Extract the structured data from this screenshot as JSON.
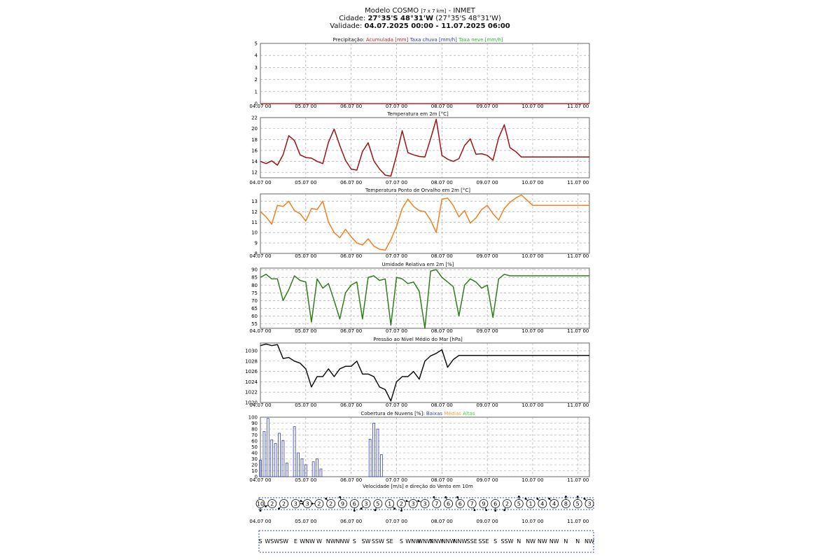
{
  "header": {
    "model": "Modelo COSMO",
    "res": "[7 x 7 km]",
    "org": "- INMET",
    "city_label": "Cidade:",
    "city_coords": "27°35'S 48°31'W",
    "city_coords2": "(27°35'S 48°31'W)",
    "valid_label": "Validade:",
    "valid_range": "04.07.2025 00:00 - 11.07.2025 06:00"
  },
  "colors": {
    "temp": "#a01010",
    "dew": "#f08020",
    "rh": "#2e7d1a",
    "press": "#111111",
    "cloud_low": "#3040c0",
    "cloud_mid": "#f0a030",
    "cloud_high": "#40d040",
    "precip_acc": "#cc2020",
    "precip_rain": "#2040d0",
    "precip_snow": "#20c020",
    "wind_box": "#2a4fd6"
  },
  "x_ticks": [
    "04.07 00",
    "05.07 00",
    "06.07 00",
    "07.07 00",
    "08.07 00",
    "09.07 00",
    "10.07 00",
    "11.07 00"
  ],
  "chart_data": [
    {
      "type": "line",
      "id": "precip",
      "title_parts": {
        "pre": "Precipitação:",
        "acc": "Acumulada [mm]",
        "rain": "Taxa chuva [mm/h]",
        "snow": "Taxa neve [mm/h]"
      },
      "ylim": [
        0,
        5
      ],
      "yticks": [
        0,
        1,
        2,
        3,
        4,
        5
      ],
      "x": [
        0,
        174
      ],
      "series": [
        {
          "name": "Acumulada [mm]",
          "values": [
            0,
            0
          ]
        }
      ]
    },
    {
      "type": "line",
      "id": "temp",
      "title": "Temperatura em 2m [°C]",
      "ylim": [
        11,
        22
      ],
      "yticks": [
        12,
        14,
        16,
        18,
        20,
        22
      ],
      "x": [
        0,
        3,
        6,
        9,
        12,
        15,
        18,
        21,
        24,
        27,
        30,
        33,
        36,
        39,
        42,
        45,
        48,
        51,
        54,
        57,
        60,
        63,
        66,
        69,
        72,
        75,
        78,
        81,
        84,
        87,
        90,
        93,
        96,
        99,
        102,
        105,
        108,
        111,
        114,
        117,
        120,
        123,
        126,
        129,
        132,
        135,
        138,
        141,
        144,
        147,
        150,
        153,
        156,
        159,
        162,
        165,
        168,
        171,
        174
      ],
      "series": [
        {
          "values": [
            14.0,
            13.6,
            14.1,
            13.3,
            15.2,
            18.7,
            17.8,
            15.2,
            14.7,
            14.6,
            14.0,
            13.6,
            17.5,
            19.9,
            16.9,
            14.2,
            12.6,
            12.4,
            15.8,
            17.4,
            14.1,
            12.6,
            11.5,
            11.3,
            15.1,
            19.6,
            15.6,
            15.2,
            14.9,
            14.8,
            18.1,
            21.7,
            15.1,
            14.4,
            14.0,
            14.5,
            16.9,
            18.1,
            15.3,
            15.4,
            15.1,
            14.2,
            18.3,
            20.7,
            16.5,
            15.8,
            14.8,
            14.8,
            14.8,
            14.8,
            14.8,
            14.8,
            14.8,
            14.8,
            14.8,
            14.8,
            14.8,
            14.8,
            14.8
          ]
        }
      ]
    },
    {
      "type": "line",
      "id": "dew",
      "title": "Temperatura Ponto de Orvalho em 2m [°C]",
      "ylim": [
        8,
        13.7
      ],
      "yticks": [
        8,
        9,
        10,
        11,
        12,
        13
      ],
      "x": [
        0,
        3,
        6,
        9,
        12,
        15,
        18,
        21,
        24,
        27,
        30,
        33,
        36,
        39,
        42,
        45,
        48,
        51,
        54,
        57,
        60,
        63,
        66,
        69,
        72,
        75,
        78,
        81,
        84,
        87,
        90,
        93,
        96,
        99,
        102,
        105,
        108,
        111,
        114,
        117,
        120,
        123,
        126,
        129,
        132,
        135,
        138,
        141,
        144,
        147,
        150,
        153,
        156,
        159,
        162,
        165,
        168,
        171,
        174
      ],
      "series": [
        {
          "values": [
            12.0,
            11.5,
            10.8,
            12.6,
            12.5,
            13.0,
            12.1,
            11.8,
            11.1,
            12.3,
            12.2,
            13.0,
            11.0,
            10.0,
            9.5,
            10.3,
            9.6,
            9.0,
            8.8,
            9.4,
            8.7,
            8.4,
            8.3,
            9.3,
            10.6,
            12.3,
            13.2,
            12.5,
            12.1,
            12.0,
            11.2,
            10.0,
            13.2,
            13.3,
            12.6,
            11.5,
            12.1,
            10.9,
            11.4,
            12.2,
            12.6,
            11.8,
            11.2,
            12.3,
            12.9,
            13.3,
            13.6,
            13.1,
            12.6,
            12.6,
            12.6,
            12.6,
            12.6,
            12.6,
            12.6,
            12.6,
            12.6,
            12.6,
            12.6
          ]
        }
      ]
    },
    {
      "type": "line",
      "id": "rh",
      "title": "Umidade Relativa em 2m [%]",
      "ylim": [
        52,
        91
      ],
      "yticks": [
        55,
        60,
        65,
        70,
        75,
        80,
        85,
        90
      ],
      "x": [
        0,
        3,
        6,
        9,
        12,
        15,
        18,
        21,
        24,
        27,
        30,
        33,
        36,
        39,
        42,
        45,
        48,
        51,
        54,
        57,
        60,
        63,
        66,
        69,
        72,
        75,
        78,
        81,
        84,
        87,
        90,
        93,
        96,
        99,
        102,
        105,
        108,
        111,
        114,
        117,
        120,
        123,
        126,
        129,
        132,
        135,
        138,
        141,
        144,
        147,
        150,
        153,
        156,
        159,
        162,
        165,
        168,
        171,
        174
      ],
      "series": [
        {
          "values": [
            85,
            87,
            84,
            84,
            70,
            77,
            86,
            83,
            82,
            56,
            84,
            78,
            81,
            70,
            58,
            75,
            80,
            82,
            58,
            85,
            86,
            83,
            84,
            54,
            85,
            84,
            81,
            82,
            76,
            52,
            89,
            90,
            85,
            82,
            79,
            60,
            80,
            84,
            82,
            78,
            80,
            59,
            84,
            87,
            86,
            86,
            86,
            86,
            86,
            86,
            86,
            86,
            86,
            86,
            86,
            86,
            86,
            86,
            86
          ]
        }
      ]
    },
    {
      "type": "line",
      "id": "press",
      "title": "Pressão ao Nível Médio do Mar [hPa]",
      "ylim": [
        1020,
        1031.5
      ],
      "yticks": [
        1020,
        1022,
        1024,
        1026,
        1028,
        1030
      ],
      "x": [
        0,
        3,
        6,
        9,
        12,
        15,
        18,
        21,
        24,
        27,
        30,
        33,
        36,
        39,
        42,
        45,
        48,
        51,
        54,
        57,
        60,
        63,
        66,
        69,
        72,
        75,
        78,
        81,
        84,
        87,
        90,
        93,
        96,
        99,
        102,
        105,
        108,
        111,
        114,
        117,
        120,
        123,
        126,
        129,
        132,
        135,
        138,
        141,
        144,
        147,
        150,
        153,
        156,
        159,
        162,
        165,
        168,
        171,
        174
      ],
      "series": [
        {
          "values": [
            1031.0,
            1031.3,
            1031.0,
            1031.2,
            1028.5,
            1028.7,
            1028.0,
            1027.6,
            1026.5,
            1023.0,
            1025.0,
            1025.0,
            1026.5,
            1025.0,
            1026.5,
            1027.0,
            1027.0,
            1028.0,
            1025.5,
            1025.5,
            1025.0,
            1023.0,
            1022.5,
            1020.3,
            1024.0,
            1025.0,
            1025.0,
            1026.0,
            1024.5,
            1028.0,
            1029.0,
            1029.5,
            1030.2,
            1026.8,
            1028.3,
            1029.1,
            1029.1,
            1029.1,
            1029.1,
            1029.1,
            1029.1,
            1029.1,
            1029.1,
            1029.1,
            1029.1,
            1029.1,
            1029.1,
            1029.1,
            1029.1,
            1029.1,
            1029.1,
            1029.1,
            1029.1,
            1029.1,
            1029.1,
            1029.1,
            1029.1,
            1029.1,
            1029.1
          ]
        }
      ]
    },
    {
      "type": "bar",
      "id": "clouds",
      "title_parts": {
        "pre": "Cobertura de Nuvens [%]:",
        "low": "Baixas",
        "mid": "Médias",
        "high": "Altas"
      },
      "ylim": [
        0,
        100
      ],
      "yticks": [
        0,
        10,
        20,
        30,
        40,
        50,
        60,
        70,
        80,
        90,
        100
      ],
      "x": [
        0,
        2,
        4,
        6,
        8,
        10,
        12,
        14,
        16,
        18,
        20,
        22,
        24,
        26,
        28,
        30,
        32,
        34,
        36,
        38,
        40,
        42,
        44,
        46,
        48,
        50,
        52,
        54,
        56,
        58,
        60,
        62,
        64,
        66,
        68,
        70,
        72,
        74,
        76,
        78,
        80,
        82,
        84,
        86,
        88,
        90,
        92,
        94,
        96,
        98,
        100,
        102,
        104,
        106,
        108,
        110,
        112,
        114,
        116,
        118,
        120,
        122,
        124,
        126,
        128,
        130,
        132,
        134,
        136,
        138,
        140,
        142,
        144,
        146,
        148,
        150,
        152,
        154,
        156,
        158,
        160,
        162,
        164,
        166,
        168,
        170,
        172,
        174
      ],
      "series": [
        {
          "name": "Baixas",
          "values": [
            28,
            76,
            98,
            62,
            56,
            73,
            61,
            23,
            0,
            84,
            40,
            30,
            20,
            0,
            25,
            30,
            13,
            0,
            0,
            0,
            0,
            0,
            0,
            0,
            0,
            0,
            0,
            0,
            0,
            63,
            90,
            80,
            37,
            0,
            0,
            0,
            0,
            0,
            0,
            0,
            0,
            0,
            0,
            0,
            0,
            0,
            0,
            0,
            0,
            0,
            0,
            0,
            0,
            0,
            0,
            0,
            0,
            0,
            0,
            0,
            0,
            0,
            0,
            0,
            0,
            0,
            0,
            0,
            0,
            0,
            0,
            0,
            0,
            0,
            0,
            0,
            0,
            0,
            0,
            0,
            0,
            0,
            0,
            0,
            0,
            0,
            0,
            0
          ]
        },
        {
          "name": "Médias",
          "values": [
            0,
            0,
            0,
            0,
            0,
            0,
            0,
            0,
            0,
            0,
            0,
            0,
            0,
            0,
            0,
            0,
            0,
            0,
            0,
            0,
            0,
            0,
            0,
            0,
            0,
            0,
            0,
            0,
            0,
            0,
            0,
            0,
            0,
            0,
            0,
            0,
            0,
            0,
            0,
            0,
            0,
            0,
            0,
            0,
            0,
            0,
            0,
            0,
            0,
            0,
            0,
            0,
            0,
            0,
            0,
            0,
            0,
            0,
            0,
            0,
            0,
            0,
            0,
            0,
            0,
            0,
            0,
            0,
            0,
            0,
            0,
            0,
            0,
            0,
            0,
            0,
            0,
            0,
            0,
            0,
            0,
            0,
            0,
            0,
            0,
            0,
            0,
            0
          ]
        },
        {
          "name": "Altas",
          "values": [
            0,
            0,
            0,
            0,
            0,
            0,
            0,
            0,
            0,
            0,
            0,
            0,
            0,
            0,
            0,
            0,
            0,
            0,
            0,
            0,
            0,
            0,
            0,
            0,
            0,
            0,
            0,
            0,
            0,
            0,
            0,
            0,
            0,
            0,
            0,
            0,
            0,
            0,
            0,
            0,
            0,
            0,
            0,
            0,
            0,
            0,
            0,
            0,
            0,
            0,
            0,
            0,
            0,
            0,
            0,
            0,
            0,
            0,
            0,
            0,
            0,
            0,
            0,
            0,
            0,
            0,
            0,
            0,
            0,
            0,
            0,
            0,
            0,
            0,
            0,
            0,
            0,
            0,
            0,
            0,
            0,
            0,
            0,
            0,
            0,
            0,
            0,
            0
          ]
        }
      ]
    }
  ],
  "wind": {
    "title": "Velocidade [m/s] e direção do Vento em 10m",
    "speeds": [
      "10",
      "2",
      "2",
      "3",
      "3",
      "2",
      "2",
      "9",
      "6",
      "3",
      "5",
      "1",
      "2",
      "3",
      "3",
      "7",
      "6",
      "6",
      "7",
      "9",
      "6",
      "2",
      "5",
      "1",
      "4",
      "4",
      "8",
      "5",
      "3"
    ],
    "directions": [
      "S",
      "WSW",
      "SW",
      "E",
      "WNW",
      "W",
      "NW",
      "NNW",
      "S",
      "SW",
      "SSW",
      "SE",
      "S",
      "WNW",
      "WNW",
      "NNW",
      "NNW",
      "NNW",
      "SSE",
      "SSE",
      "S",
      "SSW",
      "N",
      "NW",
      "NW",
      "NW",
      "N",
      "N",
      "NW"
    ]
  }
}
